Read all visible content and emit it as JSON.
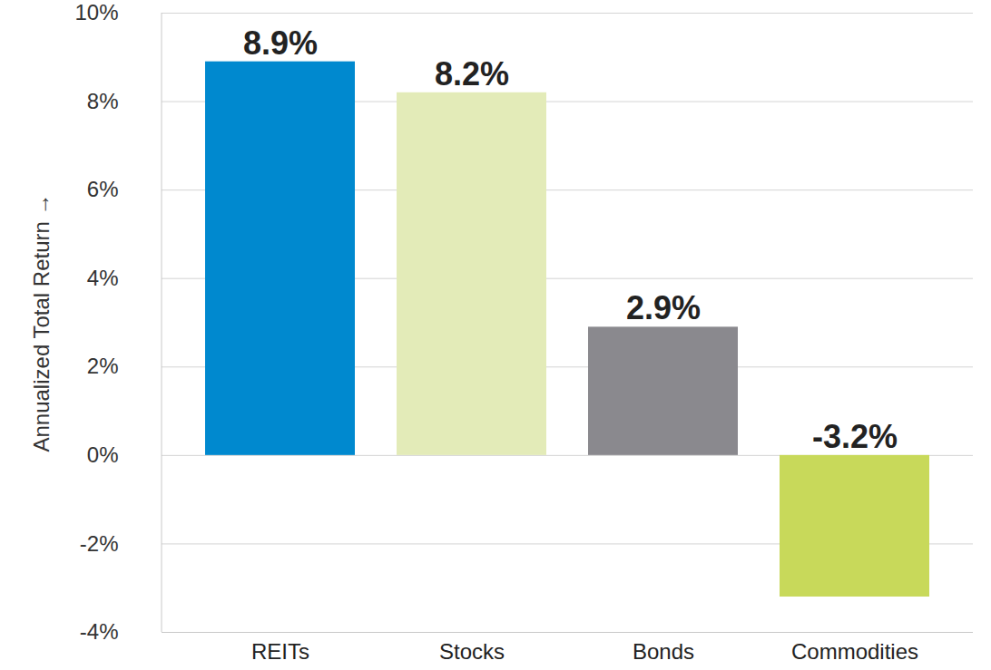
{
  "chart_data": {
    "type": "bar",
    "y_label": "Annualized Total Return",
    "categories": [
      "REITs",
      "Stocks",
      "Bonds",
      "Commodities"
    ],
    "values": [
      8.9,
      8.2,
      2.9,
      -3.2
    ],
    "value_labels": [
      "8.9%",
      "8.2%",
      "2.9%",
      "-3.2%"
    ],
    "colors": [
      "#0089cf",
      "#e3ebb8",
      "#8a898e",
      "#c8d95a"
    ],
    "ylim": [
      -4,
      10
    ],
    "yticks": [
      {
        "value": -4,
        "label": "-4%"
      },
      {
        "value": -2,
        "label": "-2%"
      },
      {
        "value": 0,
        "label": "0%"
      },
      {
        "value": 2,
        "label": "2%"
      },
      {
        "value": 4,
        "label": "4%"
      },
      {
        "value": 6,
        "label": "6%"
      },
      {
        "value": 8,
        "label": "8%"
      },
      {
        "value": 10,
        "label": "10%"
      }
    ],
    "grid": true,
    "data_labels": true
  }
}
